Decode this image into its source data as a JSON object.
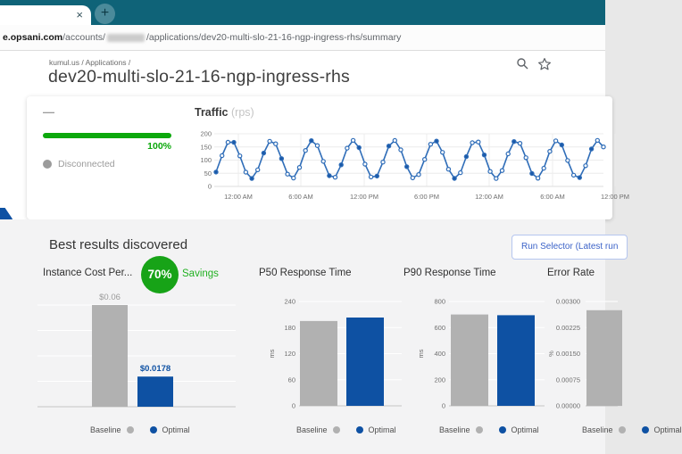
{
  "browser": {
    "tab_close": "×",
    "new_tab": "+",
    "url": {
      "domain": "e.opsani.com",
      "accounts_segment": "/accounts/",
      "path": "/applications/dev20-multi-slo-21-16-ngp-ingress-rhs/summary"
    }
  },
  "page": {
    "breadcrumb": "kumul.us / Applications /",
    "title": "dev20-multi-slo-21-16-ngp-ingress-rhs"
  },
  "status_card": {
    "collapsed_title": "—",
    "progress_label": "100%",
    "status": "Disconnected"
  },
  "results": {
    "heading": "Best results discovered",
    "run_selector_label": "Run Selector (Latest run",
    "legend": {
      "baseline": "Baseline",
      "optimal": "Optimal"
    }
  },
  "colors": {
    "browser_teal": "#0f6378",
    "progress_green": "#0ca80c",
    "badge_green": "#17a317",
    "savings_green": "#22b122",
    "optimal_blue": "#0e51a3",
    "baseline_gray": "#b1b1b1",
    "traffic_line_blue": "#2f6db8",
    "value_label_gray": "#9a9a9a"
  },
  "chart_data": [
    {
      "id": "traffic",
      "type": "line",
      "title": "Traffic",
      "unit_suffix": "(rps)",
      "ylim": [
        0,
        200
      ],
      "y_ticks": [
        0,
        50,
        100,
        150,
        200
      ],
      "x_tick_labels": [
        "12:00 AM",
        "6:00 AM",
        "12:00 PM",
        "6:00 PM",
        "12:00 AM",
        "6:00 AM",
        "12:00 PM"
      ],
      "wave": {
        "shape": "sine",
        "min": 30,
        "max": 175,
        "cycles": 9.5,
        "samples": 66,
        "phase": -0.72
      },
      "grid": true,
      "legend_position": "none"
    },
    {
      "id": "instance-cost",
      "type": "bar",
      "title": "Instance Cost Per...",
      "badge": {
        "value": "70%",
        "label": "Savings"
      },
      "categories": [
        "Baseline",
        "Optimal"
      ],
      "values": [
        0.06,
        0.0178
      ],
      "value_labels": [
        "$0.06",
        "$0.0178"
      ],
      "ylim": [
        0,
        0.06
      ],
      "y_ticks": [],
      "grid": true
    },
    {
      "id": "p50",
      "type": "bar",
      "title": "P50 Response Time",
      "ylabel": "ms",
      "categories": [
        "Baseline",
        "Optimal"
      ],
      "values": [
        195,
        203
      ],
      "ylim": [
        0,
        240
      ],
      "y_ticks": [
        0,
        60,
        120,
        180,
        240
      ],
      "grid": true
    },
    {
      "id": "p90",
      "type": "bar",
      "title": "P90 Response Time",
      "ylabel": "ms",
      "categories": [
        "Baseline",
        "Optimal"
      ],
      "values": [
        700,
        695
      ],
      "ylim": [
        0,
        800
      ],
      "y_ticks": [
        0,
        200,
        400,
        600,
        800
      ],
      "grid": true
    },
    {
      "id": "error-rate",
      "type": "bar",
      "title": "Error Rate",
      "ylabel": "%",
      "categories": [
        "Baseline"
      ],
      "values": [
        0.00275
      ],
      "ylim": [
        0,
        0.003
      ],
      "y_ticks": [
        "0.00000",
        "0.00075",
        "0.00150",
        "0.00225",
        "0.00300"
      ],
      "grid": true
    }
  ]
}
